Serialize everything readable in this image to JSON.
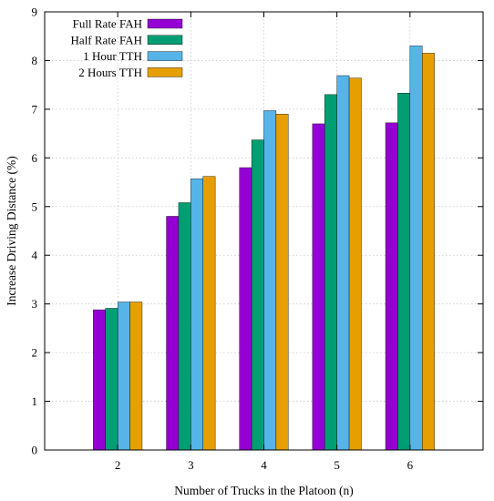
{
  "chart_data": {
    "type": "bar",
    "categories": [
      "2",
      "3",
      "4",
      "5",
      "6"
    ],
    "series": [
      {
        "name": "Full Rate FAH",
        "values": [
          2.88,
          4.8,
          5.8,
          6.7,
          6.72
        ],
        "color": "#9400d3"
      },
      {
        "name": "Half Rate FAH",
        "values": [
          2.91,
          5.08,
          6.37,
          7.3,
          7.33
        ],
        "color": "#009e73"
      },
      {
        "name": "1 Hour TTH",
        "values": [
          3.04,
          5.57,
          6.97,
          7.69,
          8.3
        ],
        "color": "#56b4e9"
      },
      {
        "name": "2 Hours TTH",
        "values": [
          3.04,
          5.62,
          6.9,
          7.64,
          8.15
        ],
        "color": "#e69f00"
      }
    ],
    "xlabel": "Number of Trucks in the Platoon (n)",
    "ylabel": "Increase Driving Distance (%)",
    "ylim": [
      0,
      9
    ],
    "yticks": [
      "0",
      "1",
      "2",
      "3",
      "4",
      "5",
      "6",
      "7",
      "8",
      "9"
    ],
    "grid": true,
    "legend_position": "top-left"
  }
}
